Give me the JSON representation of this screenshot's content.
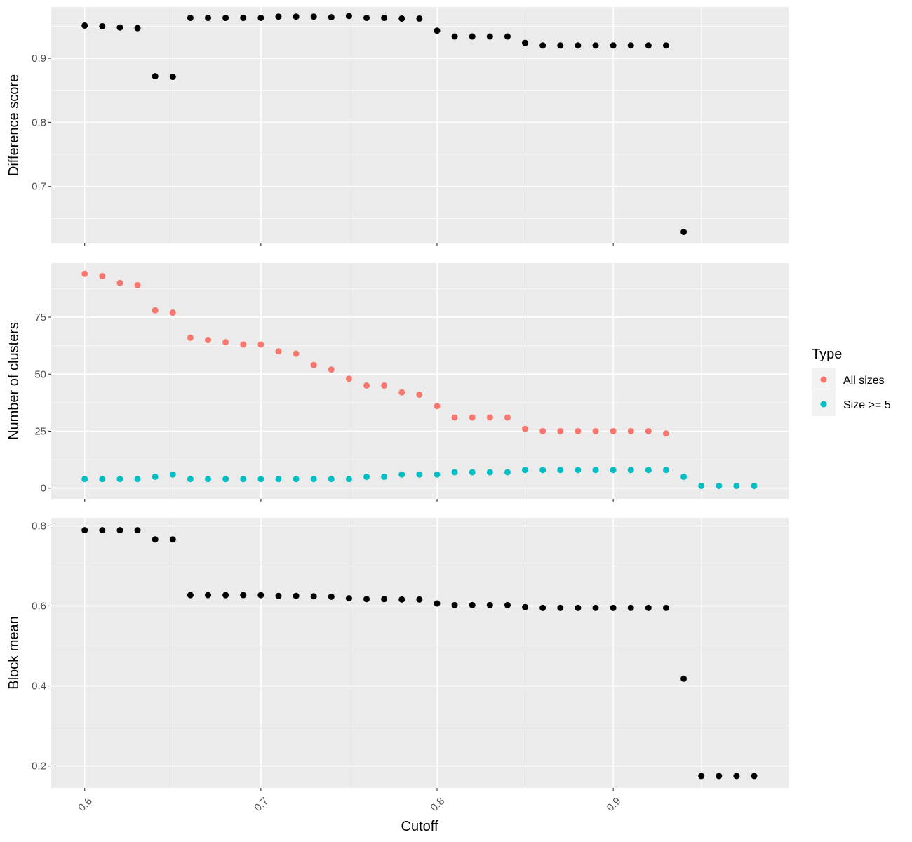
{
  "chart_data": {
    "type": "scatter",
    "xlabel": "Cutoff",
    "x_ticks": [
      "0.6",
      "0.7",
      "0.8",
      "0.9"
    ],
    "x_tick_values": [
      0.6,
      0.7,
      0.8,
      0.9
    ],
    "xlim": [
      0.581,
      0.9995
    ],
    "panel_background": "#ebebeb",
    "grid_color": "#ffffff",
    "grid": true,
    "legend": {
      "title": "Type",
      "placement": "right",
      "items": [
        {
          "label": "All sizes",
          "color": "#f8766d"
        },
        {
          "label": "Size >= 5",
          "color": "#00bfc4"
        }
      ]
    },
    "panels": [
      {
        "ylabel": "Difference score",
        "ylim": [
          0.611,
          0.98
        ],
        "y_ticks": [
          "0.7",
          "0.8",
          "0.9"
        ],
        "y_tick_values": [
          0.7,
          0.8,
          0.9
        ],
        "y_minor": [
          0.65,
          0.75,
          0.85,
          0.95
        ],
        "series": [
          {
            "color": "#000000",
            "x": [
              0.6,
              0.61,
              0.62,
              0.63,
              0.64,
              0.65,
              0.66,
              0.67,
              0.68,
              0.69,
              0.7,
              0.71,
              0.72,
              0.73,
              0.74,
              0.75,
              0.76,
              0.77,
              0.78,
              0.79,
              0.8,
              0.81,
              0.82,
              0.83,
              0.84,
              0.85,
              0.86,
              0.87,
              0.88,
              0.89,
              0.9,
              0.91,
              0.92,
              0.93,
              0.94
            ],
            "y": [
              0.951,
              0.95,
              0.948,
              0.947,
              0.872,
              0.871,
              0.963,
              0.963,
              0.963,
              0.963,
              0.963,
              0.965,
              0.965,
              0.965,
              0.964,
              0.966,
              0.963,
              0.963,
              0.962,
              0.962,
              0.943,
              0.934,
              0.934,
              0.934,
              0.934,
              0.924,
              0.92,
              0.92,
              0.92,
              0.92,
              0.92,
              0.92,
              0.92,
              0.92,
              0.629
            ]
          }
        ]
      },
      {
        "ylabel": "Number of clusters",
        "ylim": [
          -4.7,
          98.7
        ],
        "y_ticks": [
          "0",
          "25",
          "50",
          "75"
        ],
        "y_tick_values": [
          0,
          25,
          50,
          75
        ],
        "y_minor": [
          12.5,
          37.5,
          62.5,
          87.5
        ],
        "series": [
          {
            "name": "All sizes",
            "color": "#f8766d",
            "x": [
              0.6,
              0.61,
              0.62,
              0.63,
              0.64,
              0.65,
              0.66,
              0.67,
              0.68,
              0.69,
              0.7,
              0.71,
              0.72,
              0.73,
              0.74,
              0.75,
              0.76,
              0.77,
              0.78,
              0.79,
              0.8,
              0.81,
              0.82,
              0.83,
              0.84,
              0.85,
              0.86,
              0.87,
              0.88,
              0.89,
              0.9,
              0.91,
              0.92,
              0.93
            ],
            "y": [
              94,
              93,
              90,
              89,
              78,
              77,
              66,
              65,
              64,
              63,
              63,
              60,
              59,
              54,
              52,
              48,
              45,
              45,
              42,
              41,
              36,
              31,
              31,
              31,
              31,
              26,
              25,
              25,
              25,
              25,
              25,
              25,
              25,
              24
            ]
          },
          {
            "name": "Size >= 5",
            "color": "#00bfc4",
            "x": [
              0.6,
              0.61,
              0.62,
              0.63,
              0.64,
              0.65,
              0.66,
              0.67,
              0.68,
              0.69,
              0.7,
              0.71,
              0.72,
              0.73,
              0.74,
              0.75,
              0.76,
              0.77,
              0.78,
              0.79,
              0.8,
              0.81,
              0.82,
              0.83,
              0.84,
              0.85,
              0.86,
              0.87,
              0.88,
              0.89,
              0.9,
              0.91,
              0.92,
              0.93,
              0.94,
              0.95,
              0.96,
              0.97,
              0.98
            ],
            "y": [
              4,
              4,
              4,
              4,
              5,
              6,
              4,
              4,
              4,
              4,
              4,
              4,
              4,
              4,
              4,
              4,
              5,
              5,
              6,
              6,
              6,
              7,
              7,
              7,
              7,
              8,
              8,
              8,
              8,
              8,
              8,
              8,
              8,
              8,
              5,
              1,
              1,
              1,
              1
            ]
          }
        ]
      },
      {
        "ylabel": "Block mean",
        "ylim": [
          0.145,
          0.82
        ],
        "y_ticks": [
          "0.2",
          "0.4",
          "0.6",
          "0.8"
        ],
        "y_tick_values": [
          0.2,
          0.4,
          0.6,
          0.8
        ],
        "y_minor": [
          0.3,
          0.5,
          0.7
        ],
        "series": [
          {
            "color": "#000000",
            "x": [
              0.6,
              0.61,
              0.62,
              0.63,
              0.64,
              0.65,
              0.66,
              0.67,
              0.68,
              0.69,
              0.7,
              0.71,
              0.72,
              0.73,
              0.74,
              0.75,
              0.76,
              0.77,
              0.78,
              0.79,
              0.8,
              0.81,
              0.82,
              0.83,
              0.84,
              0.85,
              0.86,
              0.87,
              0.88,
              0.89,
              0.9,
              0.91,
              0.92,
              0.93,
              0.94,
              0.95,
              0.96,
              0.97,
              0.98
            ],
            "y": [
              0.789,
              0.789,
              0.789,
              0.789,
              0.766,
              0.766,
              0.627,
              0.627,
              0.627,
              0.627,
              0.627,
              0.625,
              0.625,
              0.624,
              0.623,
              0.619,
              0.617,
              0.617,
              0.616,
              0.616,
              0.606,
              0.602,
              0.602,
              0.602,
              0.602,
              0.597,
              0.595,
              0.595,
              0.595,
              0.595,
              0.595,
              0.595,
              0.595,
              0.595,
              0.418,
              0.175,
              0.175,
              0.175,
              0.175
            ]
          }
        ]
      }
    ]
  }
}
